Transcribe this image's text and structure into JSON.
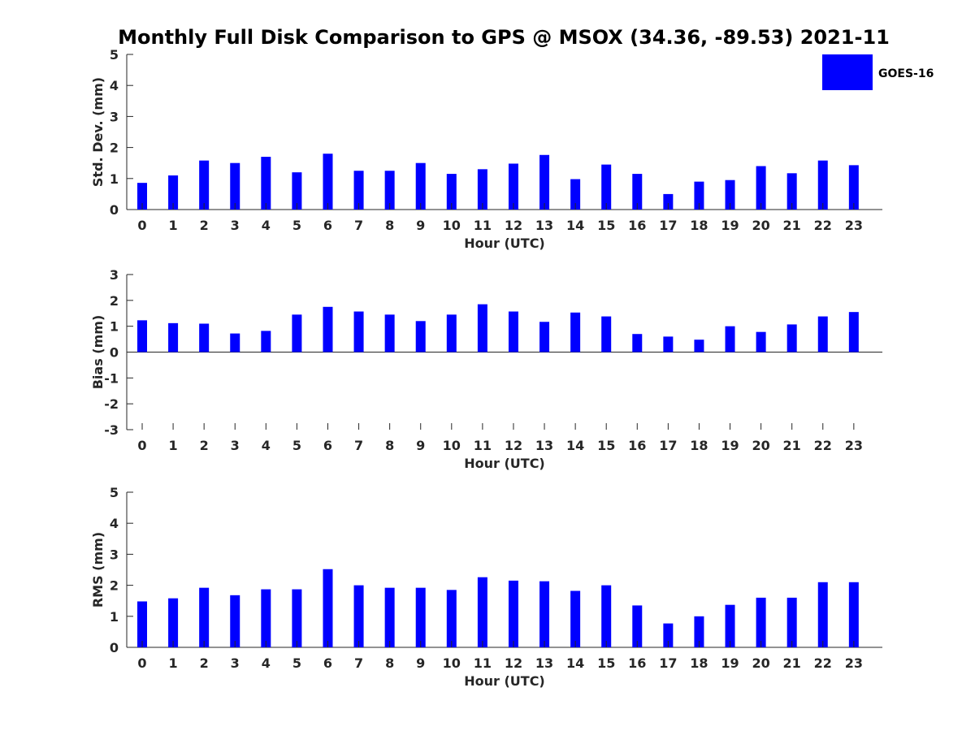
{
  "chart_data": {
    "type": "bar",
    "title": "Monthly Full Disk Comparison to GPS @ MSOX (34.36, -89.53) 2021-11",
    "legend": {
      "entries": [
        "GOES-16"
      ],
      "placement": "top-right"
    },
    "series_color": "#0000ff",
    "panels": [
      {
        "ylabel": "Std. Dev. (mm)",
        "xlabel": "Hour (UTC)",
        "ylim": [
          0,
          5
        ],
        "yticks": [
          0,
          1,
          2,
          3,
          4,
          5
        ],
        "categories": [
          "0",
          "1",
          "2",
          "3",
          "4",
          "5",
          "6",
          "7",
          "8",
          "9",
          "10",
          "11",
          "12",
          "13",
          "14",
          "15",
          "16",
          "17",
          "18",
          "19",
          "20",
          "21",
          "22",
          "23"
        ],
        "series": [
          {
            "name": "GOES-16",
            "values": [
              0.86,
              1.1,
              1.58,
              1.5,
              1.7,
              1.2,
              1.8,
              1.25,
              1.25,
              1.5,
              1.15,
              1.3,
              1.48,
              1.76,
              0.98,
              1.45,
              1.15,
              0.5,
              0.9,
              0.95,
              1.4,
              1.17,
              1.58,
              1.43
            ]
          }
        ]
      },
      {
        "ylabel": "Bias (mm)",
        "xlabel": "Hour (UTC)",
        "ylim": [
          -3,
          3
        ],
        "yticks": [
          -3,
          -2,
          -1,
          0,
          1,
          2,
          3
        ],
        "categories": [
          "0",
          "1",
          "2",
          "3",
          "4",
          "5",
          "6",
          "7",
          "8",
          "9",
          "10",
          "11",
          "12",
          "13",
          "14",
          "15",
          "16",
          "17",
          "18",
          "19",
          "20",
          "21",
          "22",
          "23"
        ],
        "series": [
          {
            "name": "GOES-16",
            "values": [
              1.23,
              1.12,
              1.1,
              0.72,
              0.82,
              1.45,
              1.75,
              1.57,
              1.45,
              1.2,
              1.45,
              1.85,
              1.57,
              1.17,
              1.53,
              1.38,
              0.7,
              0.6,
              0.48,
              1.0,
              0.78,
              1.07,
              1.38,
              1.55
            ]
          }
        ]
      },
      {
        "ylabel": "RMS (mm)",
        "xlabel": "Hour (UTC)",
        "ylim": [
          0,
          5
        ],
        "yticks": [
          0,
          1,
          2,
          3,
          4,
          5
        ],
        "categories": [
          "0",
          "1",
          "2",
          "3",
          "4",
          "5",
          "6",
          "7",
          "8",
          "9",
          "10",
          "11",
          "12",
          "13",
          "14",
          "15",
          "16",
          "17",
          "18",
          "19",
          "20",
          "21",
          "22",
          "23"
        ],
        "series": [
          {
            "name": "GOES-16",
            "values": [
              1.48,
              1.58,
              1.92,
              1.68,
              1.87,
              1.87,
              2.52,
              2.0,
              1.92,
              1.92,
              1.85,
              2.26,
              2.15,
              2.13,
              1.82,
              2.0,
              1.35,
              0.77,
              1.0,
              1.37,
              1.6,
              1.6,
              2.1,
              2.1
            ]
          }
        ]
      }
    ]
  }
}
